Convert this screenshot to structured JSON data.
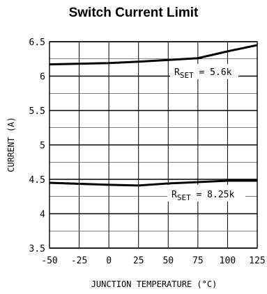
{
  "chart_data": {
    "type": "line",
    "title": "Switch Current Limit",
    "xlabel": "JUNCTION TEMPERATURE (°C)",
    "ylabel": "CURRENT (A)",
    "xlim": [
      -50,
      125
    ],
    "ylim": [
      3.5,
      6.5
    ],
    "x_ticks": [
      -50,
      -25,
      0,
      25,
      50,
      75,
      100,
      125
    ],
    "y_ticks": [
      3.5,
      4,
      4.5,
      5,
      5.5,
      6,
      6.5
    ],
    "y_tick_labels": [
      "3.5",
      "4",
      "4.5",
      "5",
      "5.5",
      "6",
      "6.5"
    ],
    "grid": true,
    "series": [
      {
        "name": "R_SET = 5.6k",
        "label_main": "R",
        "label_sub": "SET",
        "label_rest": " = 5.6k",
        "x": [
          -50,
          0,
          25,
          75,
          100,
          125
        ],
        "y": [
          6.17,
          6.19,
          6.21,
          6.26,
          6.36,
          6.45
        ]
      },
      {
        "name": "R_SET = 8.25k",
        "label_main": "R",
        "label_sub": "SET",
        "label_rest": " = 8.25k",
        "x": [
          -50,
          0,
          25,
          50,
          75,
          100,
          125
        ],
        "y": [
          4.45,
          4.42,
          4.41,
          4.44,
          4.46,
          4.48,
          4.48
        ]
      }
    ]
  }
}
